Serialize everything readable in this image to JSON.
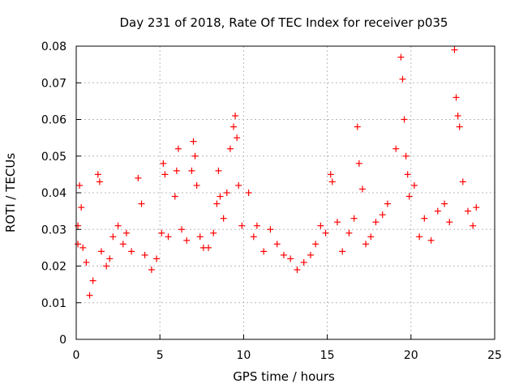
{
  "chart_data": {
    "type": "scatter",
    "title": "Day 231 of 2018, Rate Of TEC Index for receiver p035",
    "xlabel": "GPS time / hours",
    "ylabel": "ROTI / TECUs",
    "xlim": [
      0,
      25
    ],
    "ylim": [
      0,
      0.08
    ],
    "x_ticks": [
      0,
      5,
      10,
      15,
      20,
      25
    ],
    "x_tick_labels": [
      "0",
      "5",
      "10",
      "15",
      "20",
      "25"
    ],
    "y_ticks": [
      0,
      0.01,
      0.02,
      0.03,
      0.04,
      0.05,
      0.06,
      0.07,
      0.08
    ],
    "y_tick_labels": [
      "0",
      "0.01",
      "0.02",
      "0.03",
      "0.04",
      "0.05",
      "0.06",
      "0.07",
      "0.08"
    ],
    "grid": true,
    "marker": "+",
    "series": [
      {
        "name": "ROTI",
        "color": "#ff0000",
        "points": [
          [
            0.1,
            0.031
          ],
          [
            0.1,
            0.026
          ],
          [
            0.2,
            0.042
          ],
          [
            0.3,
            0.036
          ],
          [
            0.4,
            0.025
          ],
          [
            0.6,
            0.021
          ],
          [
            0.8,
            0.012
          ],
          [
            1.0,
            0.016
          ],
          [
            1.3,
            0.045
          ],
          [
            1.4,
            0.043
          ],
          [
            1.5,
            0.024
          ],
          [
            1.8,
            0.02
          ],
          [
            2.0,
            0.022
          ],
          [
            2.2,
            0.028
          ],
          [
            2.5,
            0.031
          ],
          [
            2.8,
            0.026
          ],
          [
            3.0,
            0.029
          ],
          [
            3.3,
            0.024
          ],
          [
            3.7,
            0.044
          ],
          [
            3.9,
            0.037
          ],
          [
            4.1,
            0.023
          ],
          [
            4.5,
            0.019
          ],
          [
            4.8,
            0.022
          ],
          [
            5.1,
            0.029
          ],
          [
            5.2,
            0.048
          ],
          [
            5.3,
            0.045
          ],
          [
            5.5,
            0.028
          ],
          [
            5.9,
            0.039
          ],
          [
            6.0,
            0.046
          ],
          [
            6.1,
            0.052
          ],
          [
            6.3,
            0.03
          ],
          [
            6.6,
            0.027
          ],
          [
            6.9,
            0.046
          ],
          [
            7.0,
            0.054
          ],
          [
            7.1,
            0.05
          ],
          [
            7.2,
            0.042
          ],
          [
            7.4,
            0.028
          ],
          [
            7.6,
            0.025
          ],
          [
            7.9,
            0.025
          ],
          [
            8.2,
            0.029
          ],
          [
            8.4,
            0.037
          ],
          [
            8.5,
            0.046
          ],
          [
            8.6,
            0.039
          ],
          [
            8.8,
            0.033
          ],
          [
            9.0,
            0.04
          ],
          [
            9.2,
            0.052
          ],
          [
            9.4,
            0.058
          ],
          [
            9.5,
            0.061
          ],
          [
            9.6,
            0.055
          ],
          [
            9.7,
            0.042
          ],
          [
            9.9,
            0.031
          ],
          [
            10.3,
            0.04
          ],
          [
            10.6,
            0.028
          ],
          [
            10.8,
            0.031
          ],
          [
            11.2,
            0.024
          ],
          [
            11.6,
            0.03
          ],
          [
            12.0,
            0.026
          ],
          [
            12.4,
            0.023
          ],
          [
            12.8,
            0.022
          ],
          [
            13.2,
            0.019
          ],
          [
            13.6,
            0.021
          ],
          [
            14.0,
            0.023
          ],
          [
            14.3,
            0.026
          ],
          [
            14.6,
            0.031
          ],
          [
            14.9,
            0.029
          ],
          [
            15.2,
            0.045
          ],
          [
            15.3,
            0.043
          ],
          [
            15.6,
            0.032
          ],
          [
            15.9,
            0.024
          ],
          [
            16.3,
            0.029
          ],
          [
            16.6,
            0.033
          ],
          [
            16.8,
            0.058
          ],
          [
            16.9,
            0.048
          ],
          [
            17.1,
            0.041
          ],
          [
            17.3,
            0.026
          ],
          [
            17.6,
            0.028
          ],
          [
            17.9,
            0.032
          ],
          [
            18.3,
            0.034
          ],
          [
            18.6,
            0.037
          ],
          [
            19.1,
            0.052
          ],
          [
            19.4,
            0.077
          ],
          [
            19.5,
            0.071
          ],
          [
            19.6,
            0.06
          ],
          [
            19.7,
            0.05
          ],
          [
            19.8,
            0.045
          ],
          [
            19.9,
            0.039
          ],
          [
            20.2,
            0.042
          ],
          [
            20.5,
            0.028
          ],
          [
            20.8,
            0.033
          ],
          [
            21.2,
            0.027
          ],
          [
            21.6,
            0.035
          ],
          [
            22.0,
            0.037
          ],
          [
            22.3,
            0.032
          ],
          [
            22.6,
            0.079
          ],
          [
            22.7,
            0.066
          ],
          [
            22.8,
            0.061
          ],
          [
            22.9,
            0.058
          ],
          [
            23.1,
            0.043
          ],
          [
            23.4,
            0.035
          ],
          [
            23.7,
            0.031
          ],
          [
            23.9,
            0.036
          ]
        ]
      }
    ]
  }
}
